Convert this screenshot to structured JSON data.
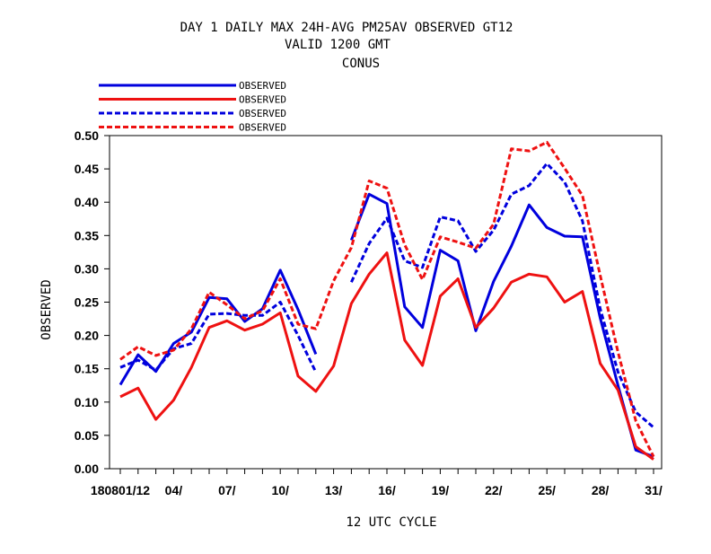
{
  "header": {
    "title_line1": "DAY 1 DAILY MAX   24H-AVG PM25AV OBSERVED GT12",
    "title_line2": "VALID 1200 GMT",
    "title_line3": "CONUS"
  },
  "chart_data": {
    "type": "line",
    "title": "DAY 1 DAILY MAX   24H-AVG PM25AV OBSERVED GT12",
    "subtitle": "VALID 1200 GMT / CONUS",
    "xlabel": "12 UTC CYCLE",
    "ylabel": "OBSERVED",
    "ylim": [
      0.0,
      0.5
    ],
    "yticks": [
      "0.00",
      "0.05",
      "0.10",
      "0.15",
      "0.20",
      "0.25",
      "0.30",
      "0.35",
      "0.40",
      "0.45",
      "0.50"
    ],
    "x_range": [
      1,
      31
    ],
    "x_tick_labels": [
      {
        "day": 1,
        "label": "180801/12"
      },
      {
        "day": 4,
        "label": "04/"
      },
      {
        "day": 7,
        "label": "07/"
      },
      {
        "day": 10,
        "label": "10/"
      },
      {
        "day": 13,
        "label": "13/"
      },
      {
        "day": 16,
        "label": "16/"
      },
      {
        "day": 19,
        "label": "19/"
      },
      {
        "day": 22,
        "label": "22/"
      },
      {
        "day": 25,
        "label": "25/"
      },
      {
        "day": 28,
        "label": "28/"
      },
      {
        "day": 31,
        "label": "31/"
      }
    ],
    "grid": false,
    "legend_position": "top-left, above plot",
    "days": [
      1,
      2,
      3,
      4,
      5,
      6,
      7,
      8,
      9,
      10,
      11,
      12,
      13,
      14,
      15,
      16,
      17,
      18,
      19,
      20,
      21,
      22,
      23,
      24,
      25,
      26,
      27,
      28,
      29,
      30,
      31
    ],
    "series": [
      {
        "name": "OBSERVED",
        "color": "#0000dd",
        "dash": "solid",
        "values": [
          0.126,
          0.171,
          0.146,
          0.188,
          0.205,
          0.257,
          0.255,
          0.221,
          0.24,
          0.298,
          0.239,
          0.172,
          null,
          0.343,
          0.412,
          0.398,
          0.243,
          0.212,
          0.328,
          0.312,
          0.207,
          0.281,
          0.334,
          0.396,
          0.362,
          0.349,
          0.348,
          0.226,
          0.125,
          0.028,
          0.018
        ]
      },
      {
        "name": "OBSERVED",
        "color": "#ee1111",
        "dash": "solid",
        "values": [
          0.108,
          0.121,
          0.074,
          0.103,
          0.152,
          0.212,
          0.222,
          0.208,
          0.217,
          0.234,
          0.139,
          0.116,
          0.154,
          0.248,
          0.292,
          0.324,
          0.193,
          0.155,
          0.259,
          0.285,
          0.212,
          0.241,
          0.28,
          0.292,
          0.288,
          0.25,
          0.266,
          0.158,
          0.118,
          0.033,
          0.014
        ]
      },
      {
        "name": "OBSERVED",
        "color": "#0000dd",
        "dash": "dashed",
        "values": [
          0.152,
          0.163,
          0.148,
          0.18,
          0.188,
          0.232,
          0.233,
          0.23,
          0.23,
          0.25,
          0.2,
          0.145,
          null,
          0.28,
          0.338,
          0.376,
          0.312,
          0.302,
          0.378,
          0.372,
          0.326,
          0.358,
          0.412,
          0.425,
          0.458,
          0.43,
          0.372,
          0.24,
          0.145,
          0.085,
          0.062
        ]
      },
      {
        "name": "OBSERVED",
        "color": "#ee1111",
        "dash": "dashed",
        "values": [
          0.164,
          0.183,
          0.17,
          0.178,
          0.21,
          0.265,
          0.246,
          0.225,
          0.237,
          0.285,
          0.217,
          0.21,
          0.282,
          0.332,
          0.432,
          0.421,
          0.336,
          0.284,
          0.348,
          0.34,
          0.331,
          0.367,
          0.48,
          0.477,
          0.49,
          0.451,
          0.41,
          0.29,
          0.175,
          0.072,
          0.018
        ]
      }
    ]
  }
}
